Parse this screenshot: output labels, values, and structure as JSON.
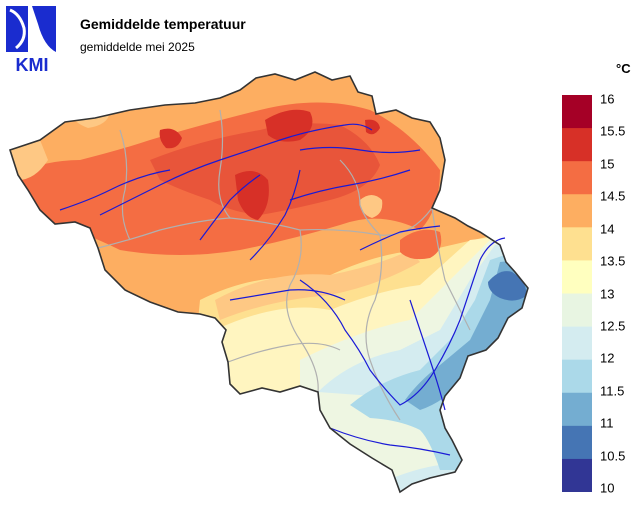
{
  "header": {
    "logo_text": "KMI",
    "title": "Gemiddelde temperatuur",
    "subtitle": "gemiddelde mei 2025"
  },
  "legend": {
    "unit": "°C",
    "labels": [
      "16",
      "15.5",
      "15",
      "14.5",
      "14",
      "13.5",
      "13",
      "12.5",
      "12",
      "11.5",
      "11",
      "10.5",
      "10"
    ],
    "colors": [
      "#a50026",
      "#d73027",
      "#f46d43",
      "#fdae61",
      "#fee090",
      "#ffffbf",
      "#e8f5e2",
      "#d4ecf0",
      "#abd9e9",
      "#74add1",
      "#4575b4",
      "#313695"
    ]
  },
  "map": {
    "region": "België",
    "palette": {
      "dark_red": "#d73027",
      "red": "#e8553a",
      "orange_red": "#f46d43",
      "orange": "#fdae61",
      "light_orange": "#fec884",
      "yellow": "#fee090",
      "pale_yellow": "#fff5c0",
      "pale_green": "#eef6e2",
      "light_blue": "#d4ecf0",
      "blue": "#abd9e9",
      "mid_blue": "#74add1",
      "dark_blue": "#4575b4",
      "border": "#333333",
      "province_border": "#b0b0b0",
      "river": "#1a1ad6"
    }
  }
}
